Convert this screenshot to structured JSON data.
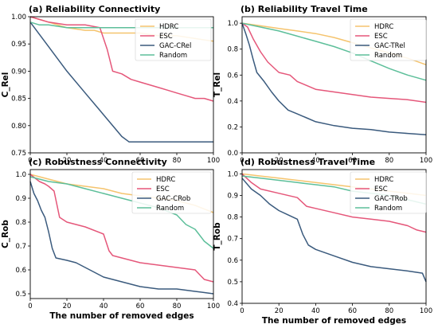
{
  "chart_data": [
    {
      "type": "line",
      "title": "(a) Reliability Connectivity",
      "xlabel": "",
      "ylabel": "C_Rel",
      "xlim": [
        0,
        100
      ],
      "ylim": [
        0.75,
        1.0
      ],
      "xticks": [
        0,
        20,
        40,
        60,
        80,
        100
      ],
      "yticks": [
        0.75,
        0.8,
        0.85,
        0.9,
        0.95,
        1.0
      ],
      "ytick_labels": [
        "0.75",
        "0.80",
        "0.85",
        "0.90",
        "0.95",
        "1.00"
      ],
      "legend_position": "top-right",
      "series": [
        {
          "name": "HDRC",
          "color": "#f5c46e",
          "x": [
            0,
            5,
            10,
            15,
            20,
            30,
            35,
            40,
            50,
            60,
            70,
            80,
            90,
            100
          ],
          "y": [
            1.0,
            0.995,
            0.99,
            0.985,
            0.98,
            0.975,
            0.975,
            0.97,
            0.97,
            0.97,
            0.965,
            0.965,
            0.96,
            0.955
          ]
        },
        {
          "name": "ESC",
          "color": "#e5577a",
          "x": [
            0,
            5,
            10,
            20,
            30,
            38,
            42,
            45,
            50,
            55,
            60,
            65,
            70,
            75,
            80,
            85,
            90,
            95,
            100
          ],
          "y": [
            1.0,
            0.995,
            0.99,
            0.985,
            0.985,
            0.98,
            0.94,
            0.9,
            0.895,
            0.885,
            0.88,
            0.875,
            0.87,
            0.865,
            0.86,
            0.855,
            0.85,
            0.85,
            0.845
          ]
        },
        {
          "name": "GAC-CRel",
          "color": "#3a5a7d",
          "x": [
            0,
            10,
            20,
            30,
            40,
            50,
            54,
            60,
            70,
            80,
            90,
            100
          ],
          "y": [
            0.99,
            0.945,
            0.9,
            0.86,
            0.82,
            0.78,
            0.77,
            0.77,
            0.77,
            0.77,
            0.77,
            0.77
          ]
        },
        {
          "name": "Random",
          "color": "#5dbf9a",
          "x": [
            0,
            5,
            10,
            20,
            30,
            40,
            50,
            60,
            70,
            80,
            90,
            100
          ],
          "y": [
            0.99,
            0.985,
            0.985,
            0.98,
            0.98,
            0.98,
            0.98,
            0.98,
            0.98,
            0.98,
            0.98,
            0.98
          ]
        }
      ]
    },
    {
      "type": "line",
      "title": "(b) Reliability Travel Time",
      "xlabel": "",
      "ylabel": "T_Rel",
      "xlim": [
        0,
        100
      ],
      "ylim": [
        0.0,
        1.05
      ],
      "xticks": [
        0,
        20,
        40,
        60,
        80,
        100
      ],
      "yticks": [
        0.0,
        0.2,
        0.4,
        0.6,
        0.8,
        1.0
      ],
      "ytick_labels": [
        "0.0",
        "0.2",
        "0.4",
        "0.6",
        "0.8",
        "1.0"
      ],
      "legend_position": "top-right",
      "series": [
        {
          "name": "HDRC",
          "color": "#f5c46e",
          "x": [
            0,
            10,
            20,
            30,
            40,
            50,
            60,
            70,
            80,
            90,
            100
          ],
          "y": [
            1.0,
            0.98,
            0.96,
            0.94,
            0.92,
            0.89,
            0.85,
            0.81,
            0.77,
            0.73,
            0.68
          ]
        },
        {
          "name": "ESC",
          "color": "#e5577a",
          "x": [
            0,
            3,
            6,
            10,
            14,
            20,
            26,
            30,
            35,
            40,
            50,
            60,
            70,
            80,
            90,
            100
          ],
          "y": [
            1.0,
            0.97,
            0.88,
            0.78,
            0.7,
            0.62,
            0.6,
            0.55,
            0.52,
            0.49,
            0.47,
            0.45,
            0.43,
            0.42,
            0.41,
            0.39
          ]
        },
        {
          "name": "GAC-TRel",
          "color": "#3a5a7d",
          "x": [
            0,
            2,
            4,
            6,
            8,
            12,
            16,
            20,
            25,
            30,
            35,
            40,
            50,
            60,
            70,
            80,
            90,
            100
          ],
          "y": [
            1.0,
            0.92,
            0.83,
            0.72,
            0.62,
            0.55,
            0.47,
            0.4,
            0.33,
            0.3,
            0.27,
            0.24,
            0.21,
            0.19,
            0.18,
            0.16,
            0.15,
            0.14
          ]
        },
        {
          "name": "Random",
          "color": "#5dbf9a",
          "x": [
            0,
            10,
            20,
            30,
            40,
            50,
            60,
            70,
            80,
            90,
            100
          ],
          "y": [
            1.0,
            0.97,
            0.94,
            0.9,
            0.86,
            0.82,
            0.77,
            0.71,
            0.65,
            0.6,
            0.56
          ]
        }
      ]
    },
    {
      "type": "line",
      "title": "(c) Robustness Connectivity",
      "xlabel": "The number of removed edges",
      "ylabel": "C_Rob",
      "xlim": [
        0,
        100
      ],
      "ylim": [
        0.48,
        1.02
      ],
      "xticks": [
        0,
        20,
        40,
        60,
        80,
        100
      ],
      "yticks": [
        0.5,
        0.6,
        0.7,
        0.8,
        0.9,
        1.0
      ],
      "ytick_labels": [
        "0.5",
        "0.6",
        "0.7",
        "0.8",
        "0.9",
        "1.0"
      ],
      "legend_position": "top-right",
      "series": [
        {
          "name": "HDRC",
          "color": "#f5c46e",
          "x": [
            0,
            10,
            20,
            30,
            40,
            50,
            60,
            70,
            80,
            90,
            100
          ],
          "y": [
            1.0,
            0.98,
            0.96,
            0.95,
            0.94,
            0.92,
            0.91,
            0.9,
            0.89,
            0.87,
            0.84
          ]
        },
        {
          "name": "ESC",
          "color": "#e5577a",
          "x": [
            0,
            5,
            8,
            10,
            13,
            16,
            20,
            30,
            40,
            43,
            45,
            50,
            60,
            70,
            80,
            90,
            95,
            100
          ],
          "y": [
            1.0,
            0.97,
            0.96,
            0.95,
            0.93,
            0.82,
            0.8,
            0.78,
            0.75,
            0.68,
            0.66,
            0.65,
            0.63,
            0.62,
            0.61,
            0.6,
            0.56,
            0.55
          ]
        },
        {
          "name": "GAC-CRob",
          "color": "#3a5a7d",
          "x": [
            0,
            2,
            4,
            6,
            8,
            10,
            12,
            14,
            20,
            25,
            30,
            40,
            50,
            60,
            70,
            80,
            90,
            100
          ],
          "y": [
            0.97,
            0.92,
            0.89,
            0.85,
            0.82,
            0.76,
            0.69,
            0.65,
            0.64,
            0.63,
            0.61,
            0.57,
            0.55,
            0.53,
            0.52,
            0.52,
            0.51,
            0.5
          ]
        },
        {
          "name": "Random",
          "color": "#5dbf9a",
          "x": [
            0,
            10,
            20,
            30,
            40,
            50,
            60,
            70,
            80,
            85,
            90,
            95,
            100
          ],
          "y": [
            0.99,
            0.97,
            0.96,
            0.94,
            0.92,
            0.9,
            0.88,
            0.86,
            0.83,
            0.79,
            0.77,
            0.72,
            0.69
          ]
        }
      ]
    },
    {
      "type": "line",
      "title": "(d) Robustness Travel Time",
      "xlabel": "The number of removed edges",
      "ylabel": "T_Rob",
      "xlim": [
        0,
        100
      ],
      "ylim": [
        0.4,
        1.02
      ],
      "xticks": [
        0,
        20,
        40,
        60,
        80,
        100
      ],
      "yticks": [
        0.4,
        0.5,
        0.6,
        0.7,
        0.8,
        0.9,
        1.0
      ],
      "ytick_labels": [
        "0.4",
        "0.5",
        "0.6",
        "0.7",
        "0.8",
        "0.9",
        "1.0"
      ],
      "legend_position": "top-right",
      "series": [
        {
          "name": "HDRC",
          "color": "#f5c46e",
          "x": [
            0,
            10,
            20,
            30,
            40,
            50,
            60,
            70,
            80,
            90,
            100
          ],
          "y": [
            1.0,
            0.99,
            0.98,
            0.97,
            0.96,
            0.95,
            0.94,
            0.93,
            0.92,
            0.91,
            0.9
          ]
        },
        {
          "name": "ESC",
          "color": "#e5577a",
          "x": [
            0,
            5,
            10,
            20,
            30,
            35,
            40,
            50,
            60,
            70,
            80,
            90,
            95,
            100
          ],
          "y": [
            1.0,
            0.96,
            0.93,
            0.91,
            0.89,
            0.85,
            0.84,
            0.82,
            0.8,
            0.79,
            0.78,
            0.76,
            0.74,
            0.73
          ]
        },
        {
          "name": "GAC-TRob",
          "color": "#3a5a7d",
          "x": [
            0,
            5,
            10,
            15,
            20,
            25,
            30,
            33,
            36,
            40,
            50,
            60,
            70,
            80,
            90,
            98,
            100
          ],
          "y": [
            0.98,
            0.93,
            0.9,
            0.86,
            0.83,
            0.81,
            0.79,
            0.72,
            0.67,
            0.65,
            0.62,
            0.59,
            0.57,
            0.56,
            0.55,
            0.54,
            0.5
          ]
        },
        {
          "name": "Random",
          "color": "#5dbf9a",
          "x": [
            0,
            10,
            20,
            30,
            40,
            50,
            60,
            70,
            80,
            90,
            100
          ],
          "y": [
            0.99,
            0.98,
            0.97,
            0.96,
            0.95,
            0.94,
            0.92,
            0.91,
            0.9,
            0.88,
            0.86
          ]
        }
      ]
    }
  ]
}
